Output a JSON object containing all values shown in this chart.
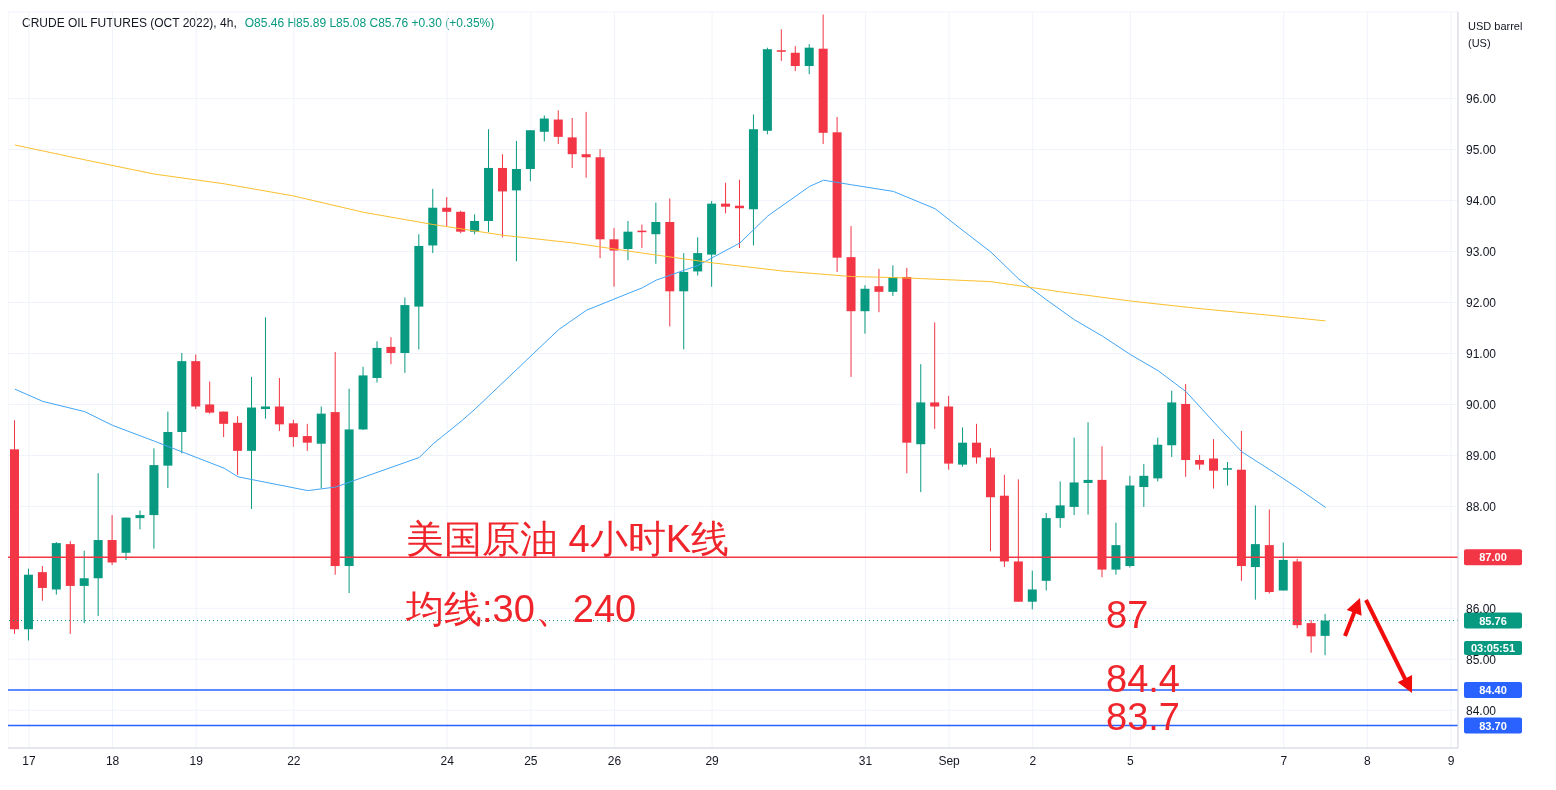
{
  "chart_data": {
    "type": "candlestick",
    "title": "CRUDE OIL FUTURES (OCT 2022), 4h,",
    "subtitle": "O85.46 H85.89 L85.08 C85.76 +0.30 (+0.35%)",
    "ylabel": "USD barrel (US)",
    "categories": [
      null,
      "17",
      null,
      null,
      null,
      null,
      null,
      "18",
      null,
      null,
      null,
      null,
      null,
      "19",
      null,
      null,
      null,
      null,
      null,
      null,
      "22",
      null,
      null,
      null,
      null,
      null,
      null,
      null,
      null,
      null,
      null,
      "24",
      null,
      null,
      null,
      null,
      null,
      "25",
      null,
      null,
      null,
      null,
      null,
      "26",
      null,
      null,
      null,
      null,
      null,
      null,
      "29",
      null,
      null,
      null,
      null,
      null,
      null,
      null,
      null,
      null,
      null,
      "31",
      null,
      null,
      null,
      null,
      null,
      "Sep",
      null,
      null,
      null,
      null,
      null,
      "2",
      null,
      null,
      null,
      null,
      null,
      null,
      "5",
      null,
      null,
      null,
      null,
      null,
      null,
      null,
      null,
      null,
      null,
      "7",
      null,
      null,
      null,
      null,
      null,
      "8",
      null,
      null,
      null,
      null,
      null,
      "9"
    ],
    "ohlc": [
      [
        89.12,
        89.69,
        85.5,
        85.59
      ],
      [
        85.59,
        86.78,
        85.37,
        86.66
      ],
      [
        86.71,
        86.83,
        86.15,
        86.4
      ],
      [
        86.37,
        87.3,
        86.27,
        87.28
      ],
      [
        87.26,
        87.32,
        85.5,
        86.44
      ],
      [
        86.44,
        87.13,
        85.71,
        86.59
      ],
      [
        86.59,
        88.65,
        85.85,
        87.34
      ],
      [
        87.34,
        87.83,
        86.85,
        86.9
      ],
      [
        87.09,
        87.78,
        86.95,
        87.78
      ],
      [
        87.77,
        87.92,
        87.55,
        87.83
      ],
      [
        87.83,
        89.14,
        87.17,
        88.81
      ],
      [
        88.8,
        89.86,
        88.36,
        89.46
      ],
      [
        89.46,
        91.01,
        89.04,
        90.85
      ],
      [
        90.85,
        90.98,
        89.91,
        89.96
      ],
      [
        90.0,
        90.45,
        89.82,
        89.84
      ],
      [
        89.86,
        89.86,
        89.36,
        89.62
      ],
      [
        89.64,
        89.77,
        88.62,
        89.09
      ],
      [
        89.09,
        90.54,
        87.95,
        89.94
      ],
      [
        89.91,
        91.71,
        89.72,
        89.96
      ],
      [
        89.96,
        90.52,
        89.48,
        89.61
      ],
      [
        89.63,
        89.7,
        89.17,
        89.36
      ],
      [
        89.38,
        89.62,
        89.09,
        89.25
      ],
      [
        89.23,
        89.96,
        88.36,
        89.82
      ],
      [
        89.85,
        91.03,
        86.66,
        86.83
      ],
      [
        86.83,
        90.31,
        86.3,
        89.51
      ],
      [
        89.51,
        90.74,
        89.5,
        90.57
      ],
      [
        90.52,
        91.24,
        90.43,
        91.11
      ],
      [
        91.13,
        91.32,
        90.79,
        91.01
      ],
      [
        91.01,
        92.1,
        90.62,
        91.95
      ],
      [
        91.92,
        93.34,
        91.08,
        93.11
      ],
      [
        93.12,
        94.23,
        92.97,
        93.86
      ],
      [
        93.86,
        94.07,
        93.5,
        93.78
      ],
      [
        93.78,
        93.8,
        93.36,
        93.39
      ],
      [
        93.39,
        93.73,
        93.34,
        93.6
      ],
      [
        93.6,
        95.4,
        93.38,
        94.64
      ],
      [
        94.64,
        94.91,
        93.28,
        94.18
      ],
      [
        94.2,
        95.17,
        92.81,
        94.62
      ],
      [
        94.62,
        95.38,
        94.38,
        95.38
      ],
      [
        95.35,
        95.67,
        95.16,
        95.61
      ],
      [
        95.59,
        95.77,
        95.11,
        95.25
      ],
      [
        95.24,
        95.62,
        94.64,
        94.91
      ],
      [
        94.91,
        95.74,
        94.45,
        94.85
      ],
      [
        94.85,
        95.01,
        92.87,
        93.24
      ],
      [
        93.24,
        93.46,
        92.31,
        93.02
      ],
      [
        93.05,
        93.6,
        92.83,
        93.39
      ],
      [
        93.41,
        93.53,
        93.07,
        93.38
      ],
      [
        93.34,
        93.96,
        92.76,
        93.58
      ],
      [
        93.58,
        94.04,
        91.53,
        92.22
      ],
      [
        92.22,
        92.97,
        91.08,
        92.6
      ],
      [
        92.61,
        93.28,
        92.53,
        92.97
      ],
      [
        92.94,
        93.99,
        92.31,
        93.94
      ],
      [
        93.94,
        94.35,
        93.75,
        93.88
      ],
      [
        93.9,
        94.41,
        93.07,
        93.85
      ],
      [
        93.83,
        95.69,
        93.12,
        95.4
      ],
      [
        95.37,
        97.0,
        95.3,
        96.97
      ],
      [
        96.95,
        97.36,
        96.74,
        96.92
      ],
      [
        96.9,
        97.03,
        96.54,
        96.64
      ],
      [
        96.64,
        97.07,
        96.48,
        97.0
      ],
      [
        96.98,
        97.65,
        95.11,
        95.33
      ],
      [
        95.34,
        95.64,
        92.6,
        92.88
      ],
      [
        92.89,
        93.5,
        90.54,
        91.83
      ],
      [
        91.83,
        92.34,
        91.39,
        92.27
      ],
      [
        92.32,
        92.66,
        91.81,
        92.21
      ],
      [
        92.21,
        92.73,
        92.13,
        92.5
      ],
      [
        92.5,
        92.68,
        88.65,
        89.25
      ],
      [
        89.22,
        90.79,
        88.28,
        90.04
      ],
      [
        90.04,
        91.61,
        89.52,
        89.96
      ],
      [
        89.96,
        90.17,
        88.72,
        88.84
      ],
      [
        88.82,
        89.55,
        88.78,
        89.25
      ],
      [
        89.25,
        89.62,
        88.84,
        88.96
      ],
      [
        88.96,
        89.14,
        87.12,
        88.18
      ],
      [
        88.21,
        88.62,
        86.81,
        86.92
      ],
      [
        86.92,
        88.53,
        86.13,
        86.13
      ],
      [
        86.13,
        86.74,
        85.98,
        86.37
      ],
      [
        86.54,
        87.87,
        86.35,
        87.77
      ],
      [
        87.77,
        88.49,
        87.58,
        88.02
      ],
      [
        87.99,
        89.35,
        87.83,
        88.47
      ],
      [
        88.46,
        89.65,
        87.84,
        88.52
      ],
      [
        88.52,
        89.18,
        86.61,
        86.76
      ],
      [
        86.76,
        87.68,
        86.66,
        87.24
      ],
      [
        86.83,
        88.6,
        86.8,
        88.41
      ],
      [
        88.38,
        88.83,
        87.99,
        88.6
      ],
      [
        88.55,
        89.35,
        88.49,
        89.21
      ],
      [
        89.2,
        90.27,
        88.97,
        90.04
      ],
      [
        90.01,
        90.4,
        88.58,
        88.91
      ],
      [
        88.91,
        89.01,
        88.72,
        88.82
      ],
      [
        88.94,
        89.32,
        88.35,
        88.7
      ],
      [
        88.72,
        88.87,
        88.41,
        88.75
      ],
      [
        88.72,
        89.48,
        86.54,
        86.83
      ],
      [
        86.81,
        88.02,
        86.17,
        87.26
      ],
      [
        87.24,
        87.94,
        86.29,
        86.32
      ],
      [
        86.35,
        87.29,
        86.35,
        86.95
      ],
      [
        86.92,
        86.97,
        85.61,
        85.67
      ],
      [
        85.71,
        85.77,
        85.13,
        85.45
      ],
      [
        85.46,
        85.89,
        85.08,
        85.76
      ],
      null,
      null,
      null,
      null,
      null,
      null,
      null,
      null,
      null
    ],
    "colors": [
      "#f23645",
      "#089981",
      "#f23645",
      "#089981",
      "#f23645",
      "#089981",
      "#089981",
      "#f23645",
      "#089981",
      "#089981",
      "#089981",
      "#089981",
      "#089981",
      "#f23645",
      "#f23645",
      "#f23645",
      "#f23645",
      "#089981",
      "#089981",
      "#f23645",
      "#f23645",
      "#f23645",
      "#089981",
      "#f23645",
      "#089981",
      "#089981",
      "#089981",
      "#f23645",
      "#089981",
      "#089981",
      "#089981",
      "#f23645",
      "#f23645",
      "#089981",
      "#089981",
      "#f23645",
      "#089981",
      "#089981",
      "#089981",
      "#f23645",
      "#f23645",
      "#f23645",
      "#f23645",
      "#f23645",
      "#089981",
      "#f23645",
      "#089981",
      "#f23645",
      "#089981",
      "#089981",
      "#089981",
      "#f23645",
      "#f23645",
      "#089981",
      "#089981",
      "#f23645",
      "#f23645",
      "#089981",
      "#f23645",
      "#f23645",
      "#f23645",
      "#089981",
      "#f23645",
      "#089981",
      "#f23645",
      "#089981",
      "#f23645",
      "#f23645",
      "#089981",
      "#f23645",
      "#f23645",
      "#f23645",
      "#f23645",
      "#089981",
      "#089981",
      "#089981",
      "#089981",
      "#089981",
      "#f23645",
      "#089981",
      "#089981",
      "#089981",
      "#089981",
      "#089981",
      "#f23645",
      "#f23645",
      "#f23645",
      "#089981",
      "#f23645",
      "#089981",
      "#f23645",
      "#089981",
      "#f23645",
      "#f23645",
      "#089981",
      null,
      null,
      null,
      null,
      null,
      null,
      null,
      null,
      null
    ],
    "series": [
      {
        "type": "line",
        "color": "#42a5f5",
        "values": [
          90.3,
          null,
          90.06,
          null,
          null,
          89.86,
          null,
          89.59,
          null,
          null,
          89.28,
          null,
          null,
          null,
          null,
          88.75,
          88.58,
          null,
          null,
          null,
          null,
          88.31,
          null,
          88.38,
          null,
          null,
          null,
          null,
          null,
          88.96,
          89.23,
          null,
          89.67,
          89.91,
          null,
          null,
          90.69,
          null,
          null,
          91.47,
          null,
          91.85,
          null,
          null,
          null,
          92.29,
          92.44,
          null,
          null,
          92.73,
          null,
          null,
          93.17,
          null,
          93.7,
          null,
          null,
          94.28,
          94.4,
          null,
          94.31,
          null,
          null,
          94.18,
          null,
          null,
          93.84,
          null,
          93.41,
          null,
          92.99,
          null,
          92.46,
          null,
          92.05,
          null,
          91.66,
          null,
          91.34,
          null,
          90.98,
          null,
          90.66,
          null,
          90.25,
          null,
          89.65,
          null,
          89.07,
          null,
          88.72,
          null,
          88.36,
          null,
          87.98,
          null,
          null,
          null,
          null,
          null,
          null,
          null,
          null,
          null
        ]
      },
      {
        "type": "line",
        "color": "#fbc02d",
        "values": [
          95.09,
          null,
          null,
          null,
          null,
          94.8,
          null,
          null,
          null,
          null,
          94.52,
          null,
          null,
          null,
          null,
          94.33,
          null,
          null,
          null,
          null,
          94.09,
          null,
          null,
          null,
          null,
          93.77,
          null,
          null,
          null,
          null,
          93.53,
          null,
          null,
          null,
          null,
          93.32,
          null,
          null,
          null,
          null,
          93.17,
          null,
          null,
          null,
          null,
          92.97,
          null,
          null,
          null,
          null,
          92.78,
          null,
          null,
          null,
          null,
          92.62,
          null,
          null,
          null,
          null,
          92.51,
          null,
          null,
          92.49,
          null,
          92.47,
          null,
          null,
          null,
          null,
          92.41,
          null,
          null,
          null,
          null,
          92.21,
          null,
          null,
          null,
          null,
          92.03,
          null,
          null,
          null,
          null,
          91.88,
          null,
          null,
          null,
          null,
          91.75,
          null,
          null,
          null,
          91.64,
          null,
          null,
          null,
          null,
          null,
          null,
          null,
          null,
          null
        ]
      }
    ],
    "ylim": [
      83.26,
      97.7
    ],
    "yticks": [
      {
        "value": 84,
        "label": "84.00"
      },
      {
        "value": 85,
        "label": "85.00"
      },
      {
        "value": 86,
        "label": "86.00"
      },
      {
        "value": 88,
        "label": "88.00"
      },
      {
        "value": 89,
        "label": "89.00"
      },
      {
        "value": 90,
        "label": "90.00"
      },
      {
        "value": 91,
        "label": "91.00"
      },
      {
        "value": 92,
        "label": "92.00"
      },
      {
        "value": 93,
        "label": "93.00"
      },
      {
        "value": 94,
        "label": "94.00"
      },
      {
        "value": 95,
        "label": "95.00"
      },
      {
        "value": 96,
        "label": "96.00"
      }
    ],
    "grid": true,
    "ref_lines": [
      {
        "axis": "y",
        "value": 87,
        "label": "87.00",
        "color": "#f23645",
        "line_style": "solid"
      },
      {
        "axis": "y",
        "value": 84.4,
        "label": "84.40",
        "color": "#2962ff",
        "line_style": "solid"
      },
      {
        "axis": "y",
        "value": 83.7,
        "label": "83.70",
        "color": "#2962ff",
        "line_style": "solid"
      },
      {
        "axis": "y",
        "value": 85.76,
        "label": "85.76",
        "color": "#089981",
        "line_style": "dotted"
      }
    ],
    "annotations": [
      "美国原油 4小时K线",
      "均线:30、240",
      "87",
      "84.4",
      "83.7",
      "03:05:51"
    ]
  }
}
